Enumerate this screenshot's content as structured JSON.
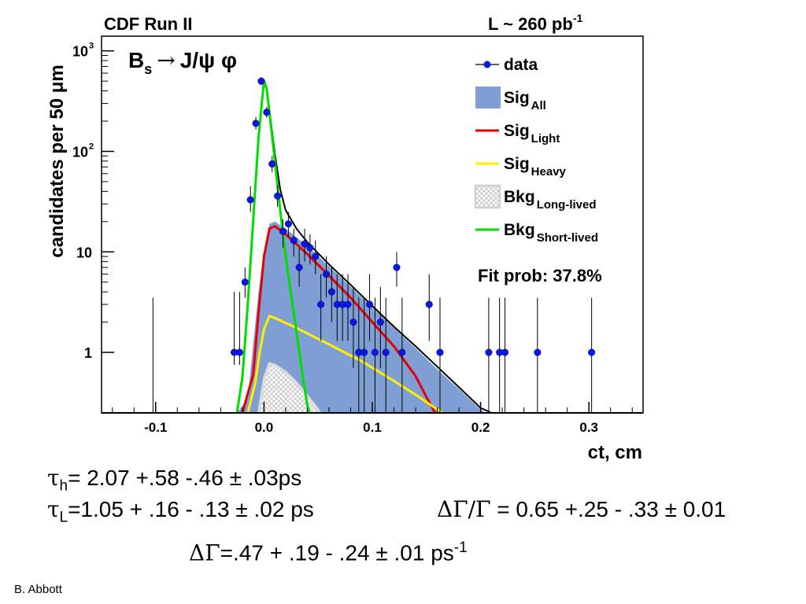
{
  "header": {
    "experiment": "CDF Run II",
    "lumi_prefix": "L ~ 260 pb",
    "lumi_exp": "-1"
  },
  "chart_data": {
    "type": "scatter",
    "y_scale": "log",
    "process": {
      "base": "B",
      "sub": "s",
      "arrow": "→",
      "rest": "J/ψ φ"
    },
    "xlabel": "ct, cm",
    "ylabel": "candidates per 50 μm",
    "xlim": [
      -0.15,
      0.35
    ],
    "ylim": [
      0.25,
      1400
    ],
    "x_ticks": [
      {
        "v": -0.1,
        "label": "-0.1"
      },
      {
        "v": 0.0,
        "label": "0.0"
      },
      {
        "v": 0.1,
        "label": "0.1"
      },
      {
        "v": 0.2,
        "label": "0.2"
      },
      {
        "v": 0.3,
        "label": "0.3"
      }
    ],
    "y_ticks": [
      {
        "v": 1,
        "label": "1",
        "exp": ""
      },
      {
        "v": 10,
        "label": "10",
        "exp": ""
      },
      {
        "v": 100,
        "label": "10",
        "exp": "2"
      },
      {
        "v": 1000,
        "label": "10",
        "exp": "3"
      }
    ],
    "legend_position": "top-right",
    "fit_prob": "Fit prob: 37.8%",
    "legend": [
      {
        "base": "data",
        "sub": "",
        "style": "data",
        "color": "#0000e6"
      },
      {
        "base": "Sig",
        "sub": "All",
        "style": "fill",
        "color": "#7f9fd4"
      },
      {
        "base": "Sig",
        "sub": "Light",
        "style": "line",
        "color": "#e60000"
      },
      {
        "base": "Sig",
        "sub": "Heavy",
        "style": "line",
        "color": "#ffee00"
      },
      {
        "base": "Bkg",
        "sub": "Long-lived",
        "style": "hatch",
        "color": "#cfcfcf"
      },
      {
        "base": "Bkg",
        "sub": "Short-lived",
        "style": "line",
        "color": "#00dd00"
      }
    ],
    "data_points": [
      {
        "x": -0.0275,
        "y": 1,
        "err_up": 4.0,
        "err_down": 0.75
      },
      {
        "x": -0.0225,
        "y": 1,
        "err_up": 4.0,
        "err_down": 0.75
      },
      {
        "x": -0.0175,
        "y": 5,
        "err_up": 7,
        "err_down": 3.5
      },
      {
        "x": -0.0125,
        "y": 33,
        "err_up": 45,
        "err_down": 25
      },
      {
        "x": -0.0075,
        "y": 190,
        "err_up": 220,
        "err_down": 165
      },
      {
        "x": -0.0025,
        "y": 500,
        "err_up": 545,
        "err_down": 458
      },
      {
        "x": 0.0025,
        "y": 245,
        "err_up": 278,
        "err_down": 216
      },
      {
        "x": 0.0075,
        "y": 75,
        "err_up": 90,
        "err_down": 62
      },
      {
        "x": 0.0125,
        "y": 36,
        "err_up": 46,
        "err_down": 28
      },
      {
        "x": 0.0175,
        "y": 16,
        "err_up": 21,
        "err_down": 11
      },
      {
        "x": 0.0225,
        "y": 19,
        "err_up": 25,
        "err_down": 14
      },
      {
        "x": 0.0275,
        "y": 13,
        "err_up": 17,
        "err_down": 9
      },
      {
        "x": 0.0325,
        "y": 7,
        "err_up": 11,
        "err_down": 4.5
      },
      {
        "x": 0.0375,
        "y": 12,
        "err_up": 17,
        "err_down": 8
      },
      {
        "x": 0.0425,
        "y": 11,
        "err_up": 15,
        "err_down": 7.5
      },
      {
        "x": 0.0475,
        "y": 9,
        "err_up": 13,
        "err_down": 6
      },
      {
        "x": 0.0525,
        "y": 3,
        "err_up": 6,
        "err_down": 1.3
      },
      {
        "x": 0.0575,
        "y": 6,
        "err_up": 9,
        "err_down": 3.5
      },
      {
        "x": 0.0625,
        "y": 4,
        "err_up": 7,
        "err_down": 2
      },
      {
        "x": 0.0675,
        "y": 3,
        "err_up": 6,
        "err_down": 1.3
      },
      {
        "x": 0.0725,
        "y": 3,
        "err_up": 6,
        "err_down": 1.3
      },
      {
        "x": 0.0775,
        "y": 3,
        "err_up": 6,
        "err_down": 1.3
      },
      {
        "x": 0.0825,
        "y": 2,
        "err_up": 4.5,
        "err_down": 0.7
      },
      {
        "x": 0.0875,
        "y": 1,
        "err_up": 3.5,
        "err_down": 0.25
      },
      {
        "x": 0.0925,
        "y": 1,
        "err_up": 3.5,
        "err_down": 0.25
      },
      {
        "x": 0.0975,
        "y": 3,
        "err_up": 6,
        "err_down": 1.3
      },
      {
        "x": 0.1025,
        "y": 1,
        "err_up": 3.5,
        "err_down": 0.25
      },
      {
        "x": 0.1075,
        "y": 2,
        "err_up": 4.5,
        "err_down": 0.7
      },
      {
        "x": 0.1125,
        "y": 1,
        "err_up": 3.5,
        "err_down": 0.25
      },
      {
        "x": 0.1225,
        "y": 7,
        "err_up": 10,
        "err_down": 4.5
      },
      {
        "x": 0.1275,
        "y": 1,
        "err_up": 3.5,
        "err_down": 0.25
      },
      {
        "x": 0.1525,
        "y": 3,
        "err_up": 6,
        "err_down": 1.3
      },
      {
        "x": 0.1625,
        "y": 1,
        "err_up": 3.5,
        "err_down": 0.25
      },
      {
        "x": 0.2075,
        "y": 1,
        "err_up": 3.5,
        "err_down": 0.25
      },
      {
        "x": 0.2175,
        "y": 1,
        "err_up": 3.5,
        "err_down": 0.25
      },
      {
        "x": 0.2225,
        "y": 1,
        "err_up": 3.5,
        "err_down": 0.25
      },
      {
        "x": 0.2525,
        "y": 1,
        "err_up": 3.5,
        "err_down": 0.25
      },
      {
        "x": 0.3025,
        "y": 1,
        "err_up": 3.5,
        "err_down": 0.25
      }
    ],
    "zero_points_x": [
      -0.1025
    ],
    "curves": [
      {
        "key": "sig_all",
        "style": "fill",
        "color": "#7f9fd4",
        "points": [
          [
            -0.025,
            0.25
          ],
          [
            -0.015,
            0.35
          ],
          [
            -0.01,
            1.2
          ],
          [
            -0.005,
            4
          ],
          [
            0.0,
            10
          ],
          [
            0.005,
            19
          ],
          [
            0.01,
            20
          ],
          [
            0.02,
            17
          ],
          [
            0.04,
            11.5
          ],
          [
            0.06,
            7.2
          ],
          [
            0.08,
            4.5
          ],
          [
            0.1,
            2.8
          ],
          [
            0.12,
            1.75
          ],
          [
            0.14,
            1.1
          ],
          [
            0.16,
            0.68
          ],
          [
            0.18,
            0.43
          ],
          [
            0.2,
            0.27
          ],
          [
            0.205,
            0.25
          ]
        ]
      },
      {
        "key": "bkg_long",
        "style": "hatch",
        "color": "#cfcfcf",
        "points": [
          [
            -0.005,
            0.25
          ],
          [
            0.0,
            0.55
          ],
          [
            0.005,
            0.78
          ],
          [
            0.01,
            0.75
          ],
          [
            0.02,
            0.64
          ],
          [
            0.03,
            0.5
          ],
          [
            0.04,
            0.37
          ],
          [
            0.05,
            0.27
          ],
          [
            0.052,
            0.25
          ]
        ]
      },
      {
        "key": "sig_light",
        "style": "line",
        "color": "#e60000",
        "points": [
          [
            -0.02,
            0.25
          ],
          [
            -0.01,
            0.6
          ],
          [
            -0.005,
            2.5
          ],
          [
            0.0,
            9
          ],
          [
            0.005,
            17
          ],
          [
            0.01,
            18
          ],
          [
            0.02,
            15
          ],
          [
            0.04,
            9.5
          ],
          [
            0.06,
            5.8
          ],
          [
            0.08,
            3.5
          ],
          [
            0.1,
            2.0
          ],
          [
            0.12,
            1.15
          ],
          [
            0.14,
            0.58
          ],
          [
            0.15,
            0.36
          ],
          [
            0.158,
            0.25
          ]
        ]
      },
      {
        "key": "sig_heavy",
        "style": "line",
        "color": "#ffee00",
        "points": [
          [
            -0.015,
            0.25
          ],
          [
            -0.008,
            0.5
          ],
          [
            -0.004,
            1.0
          ],
          [
            0.0,
            1.7
          ],
          [
            0.005,
            2.3
          ],
          [
            0.01,
            2.2
          ],
          [
            0.03,
            1.75
          ],
          [
            0.06,
            1.2
          ],
          [
            0.09,
            0.82
          ],
          [
            0.12,
            0.52
          ],
          [
            0.14,
            0.38
          ],
          [
            0.16,
            0.27
          ],
          [
            0.165,
            0.25
          ]
        ]
      },
      {
        "key": "bkg_long_line",
        "style": "line",
        "color": "#dadada",
        "points": [
          [
            -0.005,
            0.25
          ],
          [
            0.0,
            0.55
          ],
          [
            0.005,
            0.78
          ],
          [
            0.01,
            0.75
          ],
          [
            0.02,
            0.64
          ],
          [
            0.03,
            0.5
          ],
          [
            0.04,
            0.37
          ],
          [
            0.05,
            0.27
          ],
          [
            0.052,
            0.25
          ]
        ]
      },
      {
        "key": "total",
        "style": "line",
        "color": "#000000",
        "points": [
          [
            -0.025,
            0.25
          ],
          [
            -0.02,
            0.6
          ],
          [
            -0.015,
            3
          ],
          [
            -0.01,
            20
          ],
          [
            -0.005,
            140
          ],
          [
            0.0,
            510
          ],
          [
            0.0025,
            430
          ],
          [
            0.005,
            260
          ],
          [
            0.01,
            95
          ],
          [
            0.015,
            42
          ],
          [
            0.02,
            26
          ],
          [
            0.03,
            17
          ],
          [
            0.04,
            12.5
          ],
          [
            0.06,
            7.5
          ],
          [
            0.08,
            4.7
          ],
          [
            0.1,
            2.9
          ],
          [
            0.12,
            1.8
          ],
          [
            0.14,
            1.15
          ],
          [
            0.16,
            0.72
          ],
          [
            0.18,
            0.45
          ],
          [
            0.2,
            0.28
          ],
          [
            0.21,
            0.25
          ]
        ]
      },
      {
        "key": "bkg_short",
        "style": "line",
        "color": "#00dd00",
        "points": [
          [
            -0.025,
            0.25
          ],
          [
            -0.02,
            0.55
          ],
          [
            -0.015,
            3
          ],
          [
            -0.01,
            20
          ],
          [
            -0.005,
            140
          ],
          [
            0.0,
            500
          ],
          [
            0.0025,
            420
          ],
          [
            0.005,
            245
          ],
          [
            0.01,
            80
          ],
          [
            0.015,
            26
          ],
          [
            0.02,
            9
          ],
          [
            0.03,
            1.6
          ],
          [
            0.035,
            0.65
          ],
          [
            0.04,
            0.3
          ],
          [
            0.042,
            0.25
          ]
        ]
      }
    ]
  },
  "results": {
    "tau_h": {
      "sym": "τ",
      "sub": "h",
      "text": "= 2.07 +.58 -.46 ± .03ps"
    },
    "tau_l": {
      "sym": "τ",
      "sub": "L",
      "text": "=1.05 + .16 - .13 ± .02 ps"
    },
    "ratio": {
      "sym": "ΔΓ/Γ",
      "text": " = 0.65 +.25 - .33 ± 0.01"
    },
    "delta": {
      "sym": "ΔΓ",
      "text": "=.47 + .19 - .24 ± .01 ps",
      "sup": "-1"
    }
  },
  "author": "B. Abbott"
}
